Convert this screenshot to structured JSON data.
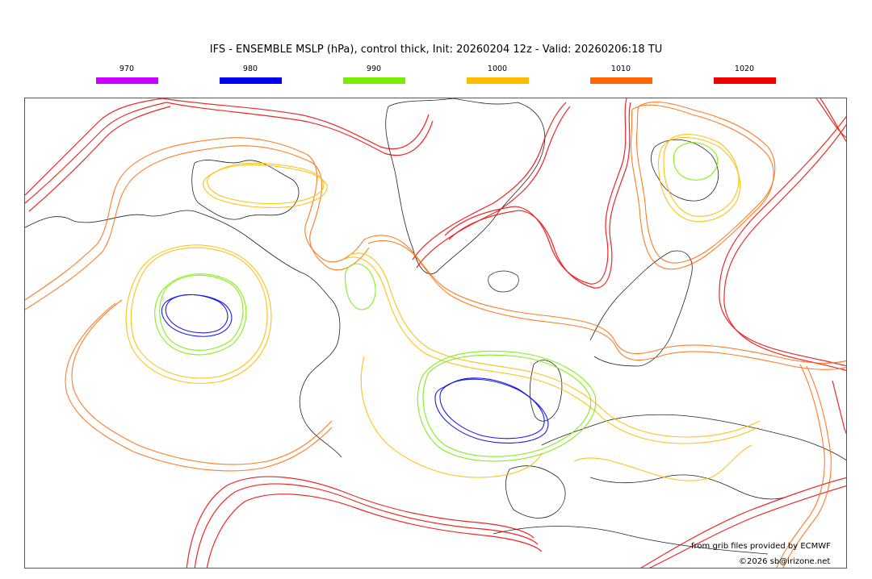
{
  "title": "IFS - ENSEMBLE MSLP (hPa), control thick, Init: 20260204 12z - Valid: 20260206:18 TU",
  "legend": [
    {
      "label": "970",
      "color": "#cc00ff"
    },
    {
      "label": "980",
      "color": "#0000ee"
    },
    {
      "label": "990",
      "color": "#77ee00"
    },
    {
      "label": "1000",
      "color": "#ffbb00"
    },
    {
      "label": "1010",
      "color": "#ff6600"
    },
    {
      "label": "1020",
      "color": "#ee0000"
    }
  ],
  "credit_source": "from grib files provided by ECMWF",
  "credit_copyright": "©2026 sb@irizone.net"
}
